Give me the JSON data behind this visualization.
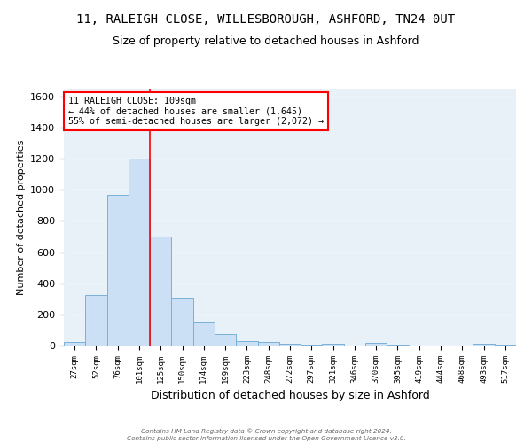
{
  "title": "11, RALEIGH CLOSE, WILLESBOROUGH, ASHFORD, TN24 0UT",
  "subtitle": "Size of property relative to detached houses in Ashford",
  "xlabel": "Distribution of detached houses by size in Ashford",
  "ylabel": "Number of detached properties",
  "bar_labels": [
    "27sqm",
    "52sqm",
    "76sqm",
    "101sqm",
    "125sqm",
    "150sqm",
    "174sqm",
    "199sqm",
    "223sqm",
    "248sqm",
    "272sqm",
    "297sqm",
    "321sqm",
    "346sqm",
    "370sqm",
    "395sqm",
    "419sqm",
    "444sqm",
    "468sqm",
    "493sqm",
    "517sqm"
  ],
  "bar_values": [
    25,
    325,
    970,
    1200,
    700,
    310,
    155,
    75,
    30,
    20,
    12,
    8,
    10,
    0,
    15,
    5,
    0,
    0,
    0,
    10,
    5
  ],
  "bar_color": "#cce0f5",
  "bar_edge_color": "#7ab0d8",
  "background_color": "#e8f0f8",
  "grid_color": "#ffffff",
  "vline_x": 3.5,
  "vline_color": "red",
  "annotation_line1": "11 RALEIGH CLOSE: 109sqm",
  "annotation_line2": "← 44% of detached houses are smaller (1,645)",
  "annotation_line3": "55% of semi-detached houses are larger (2,072) →",
  "annotation_box_color": "white",
  "annotation_box_edge": "red",
  "ylim": [
    0,
    1650
  ],
  "yticks": [
    0,
    200,
    400,
    600,
    800,
    1000,
    1200,
    1400,
    1600
  ],
  "footer_line1": "Contains HM Land Registry data © Crown copyright and database right 2024.",
  "footer_line2": "Contains public sector information licensed under the Open Government Licence v3.0."
}
